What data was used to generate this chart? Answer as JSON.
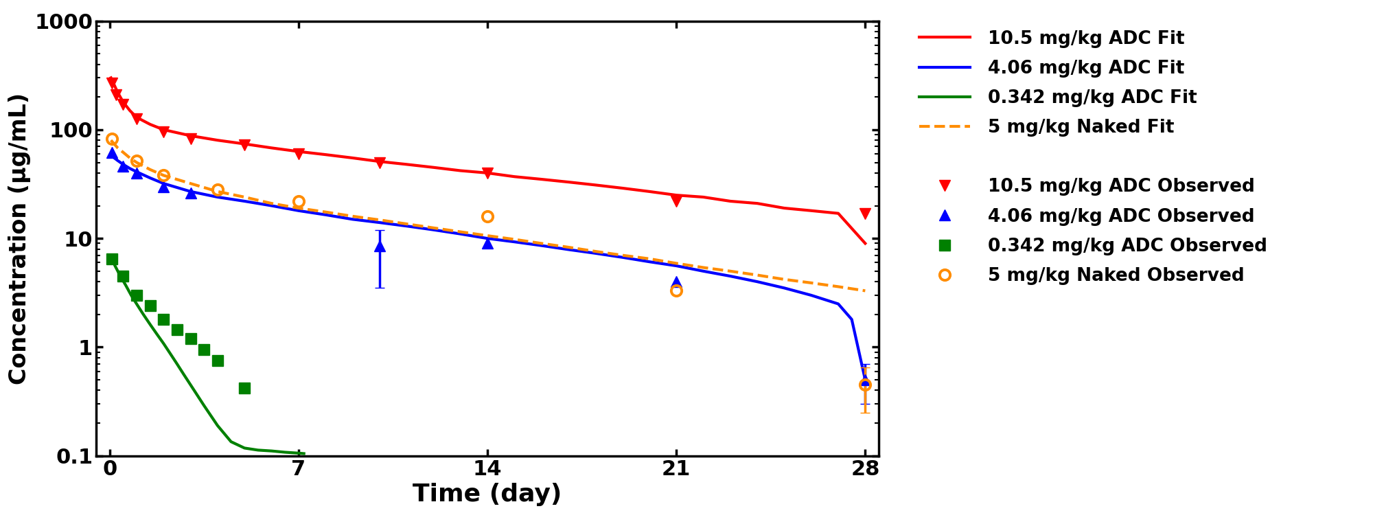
{
  "title": "",
  "xlabel": "Time (day)",
  "ylabel": "Concentration (μg/mL)",
  "xlim": [
    -0.5,
    28.5
  ],
  "ylim_log": [
    0.1,
    1000
  ],
  "background_color": "#ffffff",
  "red_fit_x": [
    0.05,
    0.3,
    0.5,
    0.75,
    1,
    1.5,
    2,
    3,
    4,
    5,
    6,
    7,
    8,
    9,
    10,
    11,
    12,
    13,
    14,
    15,
    16,
    17,
    18,
    19,
    20,
    21,
    22,
    23,
    24,
    25,
    26,
    27,
    28
  ],
  "red_fit_y": [
    300,
    220,
    180,
    150,
    130,
    112,
    100,
    88,
    80,
    74,
    68,
    63,
    59,
    55,
    51,
    48,
    45,
    42,
    40,
    37,
    35,
    33,
    31,
    29,
    27,
    25,
    24,
    22,
    21,
    19,
    18,
    17,
    9
  ],
  "blue_fit_x": [
    0.05,
    0.3,
    0.5,
    0.75,
    1,
    1.5,
    2,
    3,
    4,
    5,
    6,
    7,
    8,
    9,
    10,
    11,
    12,
    13,
    14,
    15,
    16,
    17,
    18,
    19,
    20,
    21,
    22,
    23,
    24,
    25,
    26,
    27,
    27.5,
    28
  ],
  "blue_fit_y": [
    58,
    52,
    48,
    44,
    41,
    36,
    32,
    27,
    24,
    22,
    20,
    18,
    16.5,
    15,
    14,
    13,
    12,
    11,
    10,
    9.3,
    8.6,
    7.9,
    7.3,
    6.7,
    6.1,
    5.6,
    5.0,
    4.5,
    4.0,
    3.5,
    3.0,
    2.5,
    1.8,
    0.5
  ],
  "green_fit_x": [
    0.05,
    0.2,
    0.4,
    0.6,
    0.8,
    1.0,
    1.25,
    1.5,
    1.75,
    2.0,
    2.25,
    2.5,
    2.75,
    3.0,
    3.5,
    4.0,
    4.5,
    5.0,
    5.5,
    6.0,
    6.5,
    7.0,
    7.2
  ],
  "green_fit_y": [
    6.8,
    5.6,
    4.5,
    3.7,
    3.0,
    2.5,
    2.0,
    1.62,
    1.32,
    1.08,
    0.87,
    0.7,
    0.56,
    0.45,
    0.29,
    0.19,
    0.135,
    0.118,
    0.113,
    0.111,
    0.108,
    0.106,
    0.105
  ],
  "orange_fit_x": [
    0.05,
    0.3,
    0.5,
    0.75,
    1,
    1.5,
    2,
    3,
    4,
    5,
    6,
    7,
    8,
    9,
    10,
    11,
    12,
    13,
    14,
    15,
    16,
    17,
    18,
    19,
    20,
    21,
    22,
    23,
    24,
    25,
    26,
    27,
    28
  ],
  "orange_fit_y": [
    80,
    68,
    62,
    55,
    50,
    43,
    38,
    32,
    27,
    24,
    21,
    19,
    17.5,
    16,
    14.8,
    13.6,
    12.5,
    11.5,
    10.6,
    9.8,
    9.0,
    8.3,
    7.6,
    7.0,
    6.5,
    5.9,
    5.4,
    5.0,
    4.6,
    4.2,
    3.9,
    3.6,
    3.3
  ],
  "red_obs_x": [
    0.083,
    0.25,
    0.5,
    1,
    2,
    3,
    5,
    7,
    10,
    14,
    21,
    28
  ],
  "red_obs_y": [
    270,
    210,
    170,
    125,
    95,
    82,
    72,
    60,
    50,
    40,
    22,
    17
  ],
  "blue_obs_x": [
    0.083,
    0.5,
    1,
    2,
    3,
    10,
    14,
    21,
    28
  ],
  "blue_obs_y": [
    62,
    46,
    40,
    30,
    26,
    8.5,
    9,
    4.0,
    0.5
  ],
  "blue_err_x": [
    10
  ],
  "blue_err_y": [
    8.5
  ],
  "blue_err_lo": [
    5.0
  ],
  "blue_err_hi": [
    3.5
  ],
  "blue_err2_x": [
    28
  ],
  "blue_err2_y": [
    0.5
  ],
  "blue_err2_lo": [
    0.2
  ],
  "blue_err2_hi": [
    0.2
  ],
  "green_obs_x": [
    0.083,
    0.5,
    1,
    1.5,
    2,
    2.5,
    3,
    3.5,
    4,
    5
  ],
  "green_obs_y": [
    6.5,
    4.5,
    3.0,
    2.4,
    1.8,
    1.45,
    1.2,
    0.95,
    0.75,
    0.42
  ],
  "orange_obs_x": [
    0.083,
    1,
    2,
    4,
    7,
    14,
    21,
    28
  ],
  "orange_obs_y": [
    82,
    52,
    38,
    28,
    22,
    16,
    3.3,
    0.45
  ],
  "orange_err_x": [
    28
  ],
  "orange_err_y": [
    0.45
  ],
  "orange_err_lo": [
    0.2
  ],
  "orange_err_hi": [
    0.2
  ],
  "colors": {
    "red": "#ff0000",
    "blue": "#0000ff",
    "green": "#008000",
    "orange": "#ff8c00"
  },
  "legend_fit": [
    {
      "label": "10.5 mg/kg ADC Fit",
      "color": "#ff0000",
      "ls": "solid"
    },
    {
      "label": "4.06 mg/kg ADC Fit",
      "color": "#0000ff",
      "ls": "solid"
    },
    {
      "label": "0.342 mg/kg ADC Fit",
      "color": "#008000",
      "ls": "solid"
    },
    {
      "label": "5 mg/kg Naked Fit",
      "color": "#ff8c00",
      "ls": "dashed"
    }
  ],
  "legend_obs": [
    {
      "label": "10.5 mg/kg ADC Observed",
      "color": "#ff0000",
      "marker": "v"
    },
    {
      "label": "4.06 mg/kg ADC Observed",
      "color": "#0000ff",
      "marker": "^"
    },
    {
      "label": "0.342 mg/kg ADC Observed",
      "color": "#008000",
      "marker": "s"
    },
    {
      "label": "5 mg/kg Naked Observed",
      "color": "#ff8c00",
      "marker": "o"
    }
  ]
}
